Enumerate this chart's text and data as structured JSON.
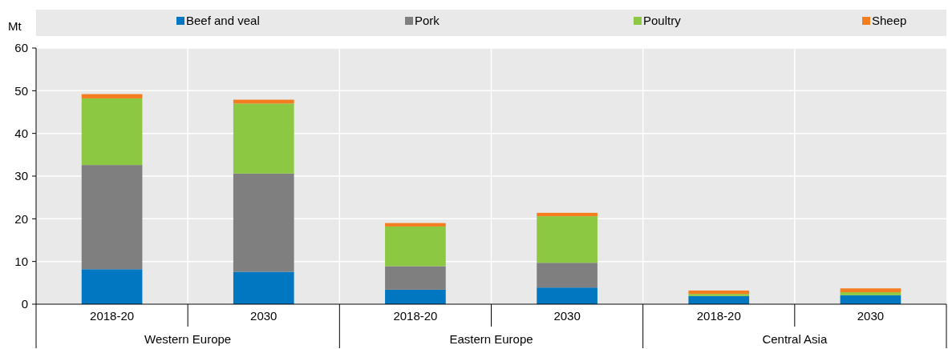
{
  "chart_data": {
    "type": "bar",
    "stacked": true,
    "ylabel": "Mt",
    "categories": [
      "2018-20",
      "2030",
      "2018-20",
      "2030",
      "2018-20",
      "2030"
    ],
    "annotations": [
      "Western Europe",
      "Eastern Europe",
      "Central Asia"
    ],
    "series": [
      {
        "name": "Beef and veal",
        "color": "#0077c0",
        "values": [
          8.2,
          7.6,
          3.4,
          3.9,
          1.9,
          2.1
        ]
      },
      {
        "name": "Pork",
        "color": "#7f7f7f",
        "values": [
          24.4,
          23.0,
          5.5,
          5.8,
          0,
          0
        ]
      },
      {
        "name": "Poultry",
        "color": "#8cc841",
        "values": [
          15.6,
          16.4,
          9.3,
          10.9,
          0.5,
          0.7
        ]
      },
      {
        "name": "Sheep",
        "color": "#f47d20",
        "values": [
          1.0,
          0.9,
          0.8,
          0.8,
          0.8,
          0.9
        ]
      }
    ],
    "ylim": [
      0,
      60
    ],
    "yticks": [
      0,
      10,
      20,
      30,
      40,
      50,
      60
    ],
    "grid": true,
    "legend": "top"
  }
}
